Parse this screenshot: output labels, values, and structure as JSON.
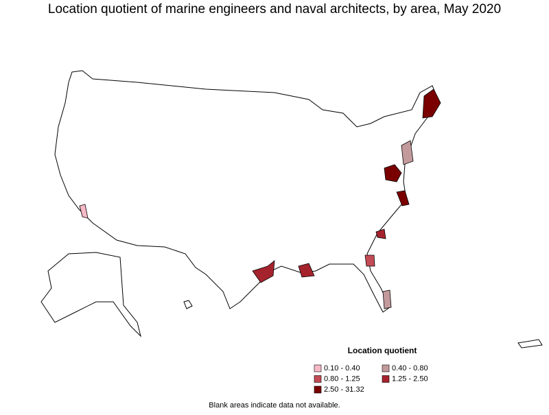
{
  "title": "Location quotient of marine engineers and naval architects, by area, May 2020",
  "legend": {
    "title": "Location quotient",
    "items": [
      {
        "label": "0.10 - 0.40",
        "color": "#f6b9c5"
      },
      {
        "label": "0.40 - 0.80",
        "color": "#c39a9c"
      },
      {
        "label": "0.80 - 1.25",
        "color": "#c24b55"
      },
      {
        "label": "1.25 - 2.50",
        "color": "#a4232d"
      },
      {
        "label": "2.50 - 31.32",
        "color": "#7a0000"
      }
    ]
  },
  "note": "Blank areas indicate data not available."
}
